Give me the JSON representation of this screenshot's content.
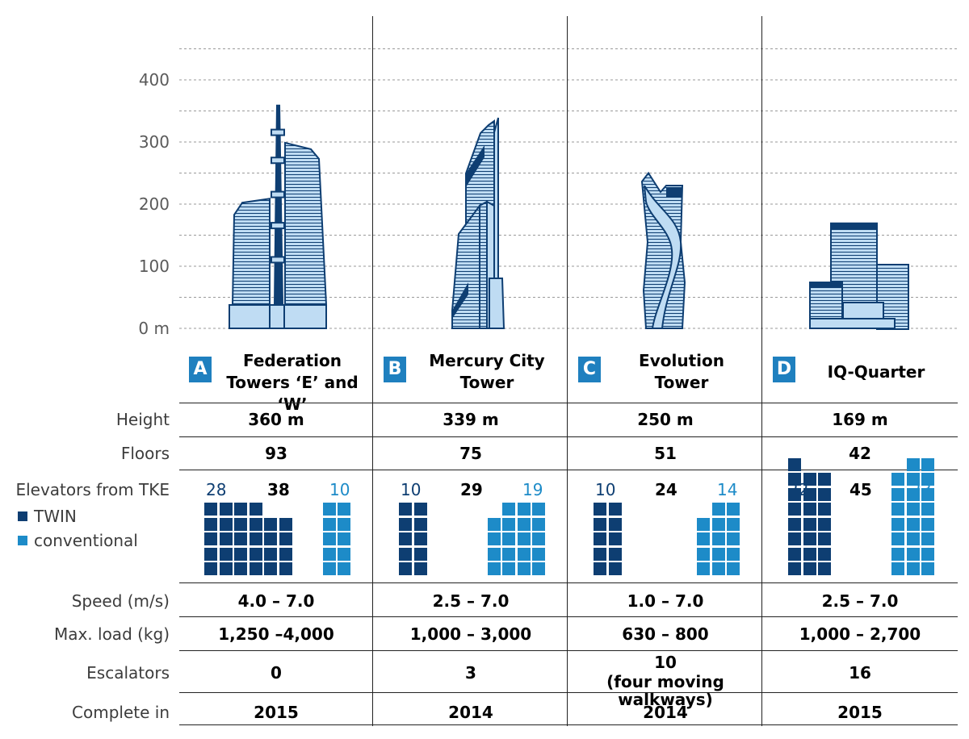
{
  "colors": {
    "twin": "#0e3e72",
    "conventional": "#1d8bc8",
    "building_fill": "#bfdcf3",
    "building_stroke": "#0e3e72",
    "badge": "#1f80bf",
    "grid": "#9a9a9a"
  },
  "chart_data": {
    "type": "bar",
    "categories": [
      "A",
      "B",
      "C",
      "D"
    ],
    "values": [
      360,
      339,
      250,
      169
    ],
    "y_ticks": [
      {
        "value": 0,
        "label": "0 m"
      },
      {
        "value": 100,
        "label": "100"
      },
      {
        "value": 200,
        "label": "200"
      },
      {
        "value": 300,
        "label": "300"
      },
      {
        "value": 400,
        "label": "400"
      }
    ],
    "ylim": [
      0,
      450
    ],
    "grid": true
  },
  "towers": [
    {
      "letter": "A",
      "name_line1": "Federation",
      "name_line2": "Towers ‘E’ and ‘W’",
      "height": "360 m",
      "floors": "93",
      "twin": 28,
      "total": 38,
      "conventional": 10,
      "speed": "4.0 – 7.0",
      "load": "1,250 –4,000",
      "escalators": "0",
      "escalators_note": "",
      "complete": "2015"
    },
    {
      "letter": "B",
      "name_line1": "Mercury City",
      "name_line2": "Tower",
      "height": "339 m",
      "floors": "75",
      "twin": 10,
      "total": 29,
      "conventional": 19,
      "speed": "2.5 – 7.0",
      "load": "1,000 – 3,000",
      "escalators": "3",
      "escalators_note": "",
      "complete": "2014"
    },
    {
      "letter": "C",
      "name_line1": "Evolution",
      "name_line2": "Tower",
      "height": "250 m",
      "floors": "51",
      "twin": 10,
      "total": 24,
      "conventional": 14,
      "speed": "1.0 – 7.0",
      "load": "630 – 800",
      "escalators": "10",
      "escalators_note": "(four moving walkways)",
      "complete": "2014"
    },
    {
      "letter": "D",
      "name_line1": "IQ-Quarter",
      "name_line2": "",
      "height": "169 m",
      "floors": "42",
      "twin": 22,
      "total": 45,
      "conventional": 23,
      "speed": "2.5 – 7.0",
      "load": "1,000 – 2,700",
      "escalators": "16",
      "escalators_note": "",
      "complete": "2015"
    }
  ],
  "row_labels": {
    "height": "Height",
    "floors": "Floors",
    "elevators": "Elevators from TKE",
    "speed": "Speed (m/s)",
    "load": "Max. load (kg)",
    "escalators": "Escalators",
    "complete": "Complete in"
  },
  "legend": {
    "twin": "TWIN",
    "conventional": "conventional"
  }
}
